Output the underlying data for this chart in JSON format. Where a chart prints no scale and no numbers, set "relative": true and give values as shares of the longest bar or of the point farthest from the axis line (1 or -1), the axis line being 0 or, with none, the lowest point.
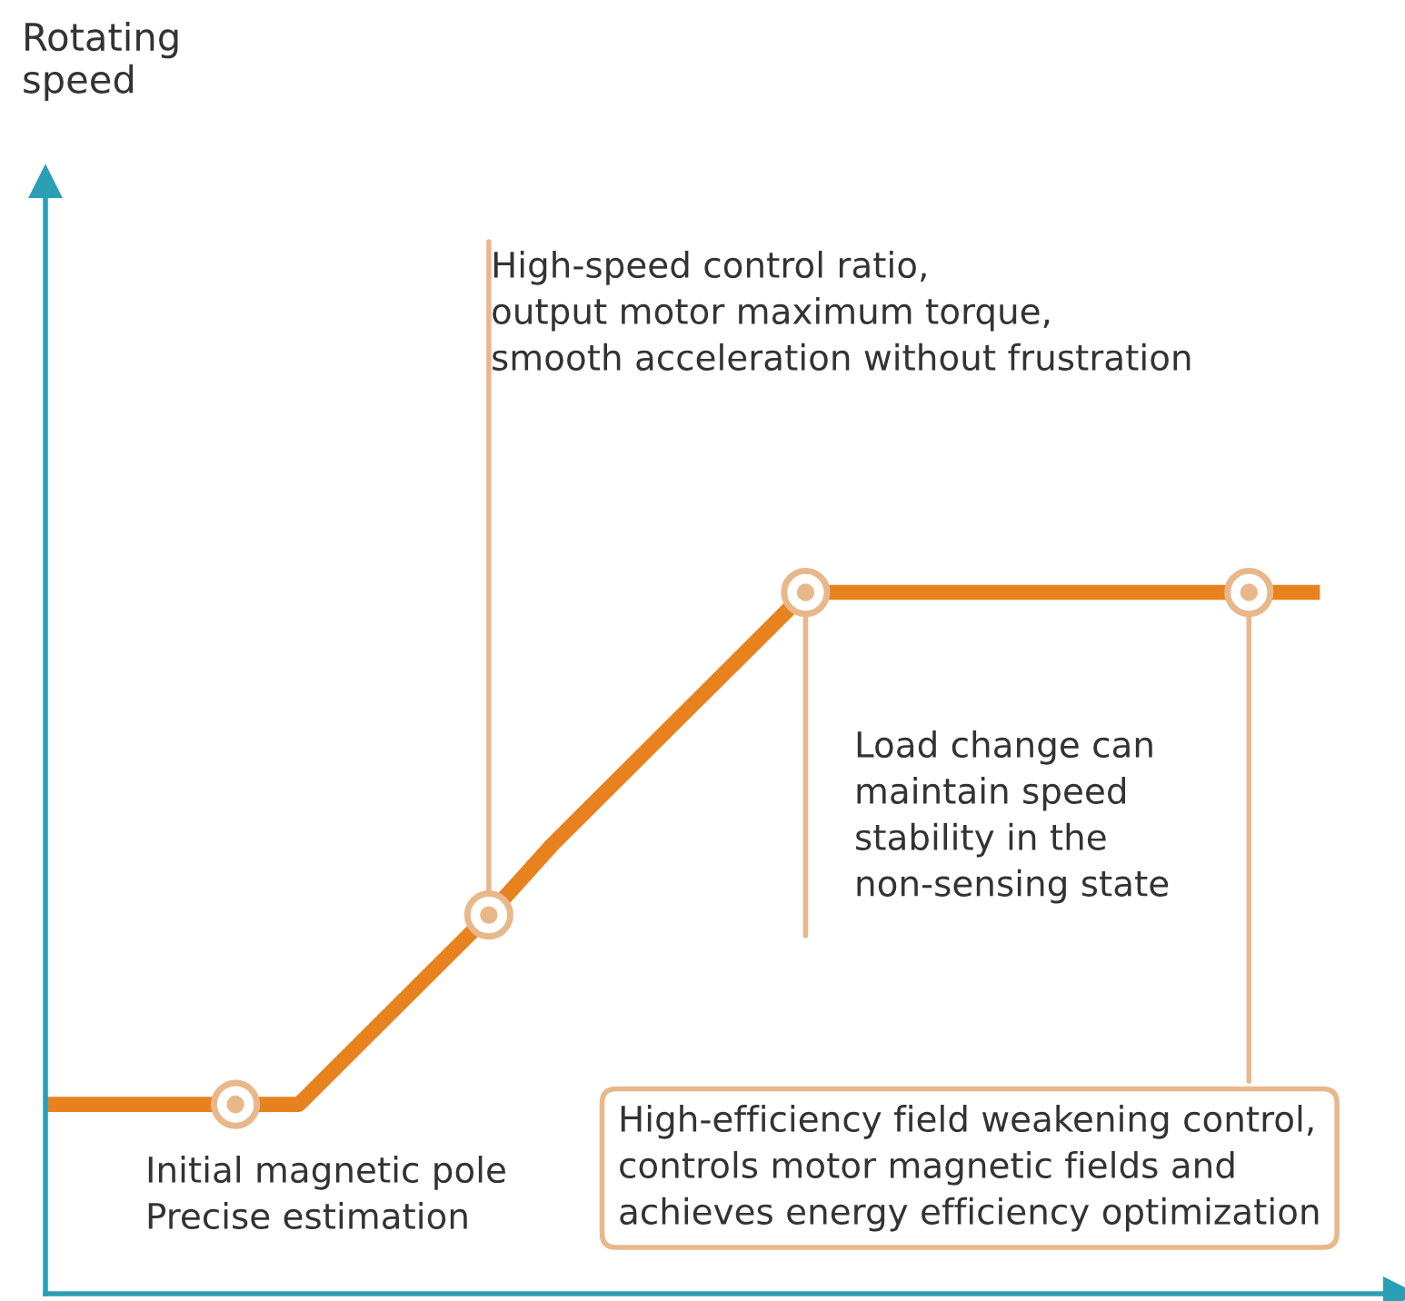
{
  "chart_data": {
    "type": "line",
    "relative": true,
    "line_style": "solid",
    "categories": [
      null,
      null,
      null,
      null,
      null,
      null,
      null,
      null,
      null,
      null,
      null,
      null,
      null,
      null,
      null,
      null,
      null,
      null,
      null,
      null,
      null
    ],
    "series": [
      {
        "color": "#e8821e",
        "values": [
          0.27,
          0.27,
          0.27,
          0.27,
          0.27,
          0.36,
          0.45,
          0.54,
          0.64,
          0.73,
          0.82,
          0.91,
          1,
          1,
          1,
          1,
          1,
          1,
          1,
          1,
          1
        ]
      }
    ],
    "annotations": [
      "Rotating speed",
      "Initial magnetic pole\nPrecise estimation",
      "High-speed control ratio,\noutput motor maximum torque,\nsmooth acceleration without frustration",
      "Load change can\nmaintain speed\nstability in the\nnon-sensing state",
      "High-efficiency field weakening control,\ncontrols motor magnetic fields and\nachieves energy efficiency optimization"
    ]
  }
}
